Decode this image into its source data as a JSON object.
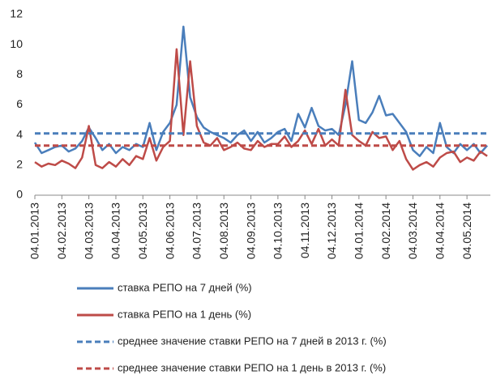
{
  "chart_data": {
    "type": "line",
    "categories": [
      "04.01.2013",
      null,
      null,
      null,
      "04.02.2013",
      null,
      null,
      null,
      "04.03.2013",
      null,
      null,
      null,
      "04.04.2013",
      null,
      null,
      null,
      "04.05.2013",
      null,
      null,
      null,
      "04.06.2013",
      null,
      null,
      null,
      "04.07.2013",
      null,
      null,
      null,
      "04.08.2013",
      null,
      null,
      null,
      "04.09.2013",
      null,
      null,
      null,
      "04.10.2013",
      null,
      null,
      null,
      "04.11.2013",
      null,
      null,
      null,
      "04.12.2013",
      null,
      null,
      null,
      "04.01.2014",
      null,
      null,
      null,
      "04.02.2014",
      null,
      null,
      null,
      "04.03.2014",
      null,
      null,
      null,
      "04.04.2014",
      null,
      null,
      null,
      "04.05.2014",
      null,
      null,
      null
    ],
    "series": [
      {
        "name": "ставка РЕПО на 7 дней (%)",
        "color": "#4a7ebb",
        "dashed": false,
        "values": [
          3.5,
          2.8,
          3.0,
          3.2,
          3.3,
          2.9,
          3.1,
          3.6,
          4.5,
          3.8,
          3.0,
          3.4,
          2.8,
          3.2,
          3.0,
          3.4,
          3.2,
          4.8,
          3.0,
          4.2,
          4.8,
          6.0,
          11.2,
          6.5,
          5.2,
          4.5,
          4.2,
          4.0,
          3.8,
          3.5,
          4.0,
          4.3,
          3.6,
          4.2,
          3.5,
          3.8,
          4.2,
          4.4,
          3.6,
          5.4,
          4.5,
          5.8,
          4.6,
          4.3,
          4.4,
          4.0,
          6.0,
          8.9,
          5.0,
          4.8,
          5.5,
          6.6,
          5.3,
          5.4,
          4.8,
          4.2,
          3.0,
          2.6,
          3.2,
          2.8,
          4.8,
          3.2,
          2.8,
          3.4,
          3.0,
          3.4,
          2.8,
          3.3
        ]
      },
      {
        "name": "ставка РЕПО на 1 день (%)",
        "color": "#be4b48",
        "dashed": false,
        "values": [
          2.2,
          1.9,
          2.1,
          2.0,
          2.3,
          2.1,
          1.8,
          2.5,
          4.6,
          2.0,
          1.8,
          2.2,
          1.9,
          2.4,
          2.0,
          2.6,
          2.4,
          3.8,
          2.3,
          3.2,
          3.6,
          9.7,
          4.0,
          8.9,
          4.6,
          3.5,
          3.3,
          3.8,
          3.0,
          3.2,
          3.5,
          3.1,
          3.0,
          3.6,
          3.2,
          3.4,
          3.4,
          3.9,
          3.2,
          3.6,
          4.3,
          3.4,
          4.4,
          3.3,
          3.7,
          3.3,
          7.0,
          4.0,
          3.6,
          3.3,
          4.2,
          3.8,
          3.9,
          3.0,
          3.6,
          2.4,
          1.7,
          2.0,
          2.2,
          1.9,
          2.5,
          2.8,
          2.9,
          2.2,
          2.5,
          2.3,
          2.9,
          2.6
        ]
      },
      {
        "name": "среднее значение ставки РЕПО на 7 дней в 2013 г. (%)",
        "color": "#4a7ebb",
        "dashed": true,
        "values": [
          4.1,
          4.1,
          4.1,
          4.1,
          4.1,
          4.1,
          4.1,
          4.1,
          4.1,
          4.1,
          4.1,
          4.1,
          4.1,
          4.1,
          4.1,
          4.1,
          4.1,
          4.1,
          4.1,
          4.1,
          4.1,
          4.1,
          4.1,
          4.1,
          4.1,
          4.1,
          4.1,
          4.1,
          4.1,
          4.1,
          4.1,
          4.1,
          4.1,
          4.1,
          4.1,
          4.1,
          4.1,
          4.1,
          4.1,
          4.1,
          4.1,
          4.1,
          4.1,
          4.1,
          4.1,
          4.1,
          4.1,
          4.1,
          4.1,
          4.1,
          4.1,
          4.1,
          4.1,
          4.1,
          4.1,
          4.1,
          4.1,
          4.1,
          4.1,
          4.1,
          4.1,
          4.1,
          4.1,
          4.1,
          4.1,
          4.1,
          4.1,
          4.1
        ]
      },
      {
        "name": "среднее значение ставки РЕПО на 1 день в 2013 г. (%)",
        "color": "#be4b48",
        "dashed": true,
        "values": [
          3.3,
          3.3,
          3.3,
          3.3,
          3.3,
          3.3,
          3.3,
          3.3,
          3.3,
          3.3,
          3.3,
          3.3,
          3.3,
          3.3,
          3.3,
          3.3,
          3.3,
          3.3,
          3.3,
          3.3,
          3.3,
          3.3,
          3.3,
          3.3,
          3.3,
          3.3,
          3.3,
          3.3,
          3.3,
          3.3,
          3.3,
          3.3,
          3.3,
          3.3,
          3.3,
          3.3,
          3.3,
          3.3,
          3.3,
          3.3,
          3.3,
          3.3,
          3.3,
          3.3,
          3.3,
          3.3,
          3.3,
          3.3,
          3.3,
          3.3,
          3.3,
          3.3,
          3.3,
          3.3,
          3.3,
          3.3,
          3.3,
          3.3,
          3.3,
          3.3,
          3.3,
          3.3,
          3.3,
          3.3,
          3.3,
          3.3,
          3.3,
          3.3
        ]
      }
    ],
    "ylim": [
      0,
      12
    ],
    "yticks": [
      0,
      2,
      4,
      6,
      8,
      10,
      12
    ],
    "grid": false,
    "legend": "bottom"
  }
}
